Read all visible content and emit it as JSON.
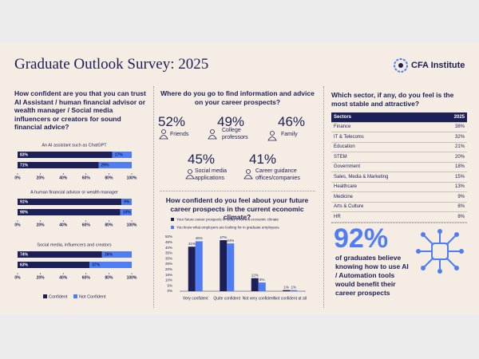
{
  "header": {
    "title": "Graduate Outlook Survey: 2025",
    "logo": "CFA Institute"
  },
  "trust": {
    "question": "How confident are you that you can trust AI Assistant / human financial advisor or wealth  manager / Social media influencers or creators for sound financial advice?"
  },
  "chart_data": [
    {
      "type": "bar",
      "orientation": "horizontal",
      "stacked": true,
      "subtitle": "An AI assistant such as ChatGPT",
      "categories": [
        null,
        null
      ],
      "series": [
        {
          "color": "#1c2057",
          "values": [
            83,
            71
          ],
          "value_labels": [
            "83%",
            "71%"
          ]
        },
        {
          "color": "#4f7df3",
          "values": [
            17,
            29
          ],
          "value_labels": [
            "17%",
            "29%"
          ]
        }
      ],
      "xlim": [
        0,
        100
      ],
      "xticks": [
        {
          "value": 0,
          "label": "0%"
        },
        {
          "value": 20,
          "label": "20%"
        },
        {
          "value": 40,
          "label": "40%"
        },
        {
          "value": 60,
          "label": "60%"
        },
        {
          "value": 80,
          "label": "80%"
        },
        {
          "value": 100,
          "label": "100%"
        }
      ]
    },
    {
      "type": "bar",
      "orientation": "horizontal",
      "stacked": true,
      "subtitle": "A human financial advisor or wealth manager",
      "categories": [
        null,
        null
      ],
      "series": [
        {
          "color": "#1c2057",
          "values": [
            91,
            90
          ],
          "value_labels": [
            "91%",
            "90%"
          ]
        },
        {
          "color": "#4f7df3",
          "values": [
            9,
            10
          ],
          "value_labels": [
            "9%",
            "10%"
          ]
        }
      ],
      "xlim": [
        0,
        100
      ],
      "xticks": [
        {
          "value": 0,
          "label": "0%"
        },
        {
          "value": 20,
          "label": "20%"
        },
        {
          "value": 40,
          "label": "40%"
        },
        {
          "value": 60,
          "label": "60%"
        },
        {
          "value": 80,
          "label": "80%"
        },
        {
          "value": 100,
          "label": "100%"
        }
      ]
    },
    {
      "type": "bar",
      "orientation": "horizontal",
      "stacked": true,
      "subtitle": "Social media, influencers and creators",
      "categories": [
        null,
        null
      ],
      "series": [
        {
          "name": "Confident",
          "color": "#1c2057",
          "values": [
            74,
            63
          ],
          "value_labels": [
            "74%",
            "63%"
          ]
        },
        {
          "name": "Not Confident",
          "color": "#4f7df3",
          "values": [
            26,
            37
          ],
          "value_labels": [
            "26%",
            "37%"
          ]
        }
      ],
      "xlim": [
        0,
        100
      ],
      "xticks": [
        {
          "value": 0,
          "label": "0%"
        },
        {
          "value": 20,
          "label": "20%"
        },
        {
          "value": 40,
          "label": "40%"
        },
        {
          "value": 60,
          "label": "60%"
        },
        {
          "value": 80,
          "label": "80%"
        },
        {
          "value": 100,
          "label": "100%"
        }
      ],
      "legend": "bottom"
    },
    {
      "type": "bar",
      "orientation": "vertical",
      "title": "How confident do you feel about your future career prospects in the current economic climate?",
      "categories": [
        "Very confident",
        "Quite confident",
        "Not very confident",
        "Not confident at all"
      ],
      "series": [
        {
          "name": "Your future career prospects in today's current economic climate",
          "color": "#1c2057",
          "values": [
            41,
            47,
            12,
            1
          ],
          "value_labels": [
            "41%",
            "47%",
            "12%",
            "1%"
          ]
        },
        {
          "name": "You know what employers are looking for in graduate employees",
          "color": "#4f7df3",
          "values": [
            46,
            44,
            8,
            1
          ],
          "value_labels": [
            "46%",
            "44%",
            "8%",
            "1%"
          ]
        }
      ],
      "ylim": [
        0,
        50
      ],
      "yticks": [
        {
          "value": 0,
          "label": "0%"
        },
        {
          "value": 5,
          "label": "5%"
        },
        {
          "value": 10,
          "label": "10%"
        },
        {
          "value": 15,
          "label": "15%"
        },
        {
          "value": 20,
          "label": "20%"
        },
        {
          "value": 25,
          "label": "25%"
        },
        {
          "value": 30,
          "label": "30%"
        },
        {
          "value": 35,
          "label": "35%"
        },
        {
          "value": 40,
          "label": "40%"
        },
        {
          "value": 45,
          "label": "45%"
        },
        {
          "value": 50,
          "label": "50%"
        }
      ],
      "grid": false,
      "legend": "top"
    }
  ],
  "sources": {
    "question": "Where do you go to find information and advice on your career prospects?",
    "items": [
      {
        "value": "52%",
        "label": "Friends"
      },
      {
        "value": "49%",
        "label": "College professors"
      },
      {
        "value": "46%",
        "label": "Family"
      },
      {
        "value": "45%",
        "label": "Social media applications"
      },
      {
        "value": "41%",
        "label": "Career guidance offices/companies"
      }
    ]
  },
  "sectors": {
    "question": "Which sector, if any, do you feel is the most stable and attractive?",
    "table": {
      "header": [
        "Sectors",
        "2025"
      ],
      "rows": [
        [
          "Finance",
          "38%"
        ],
        [
          "IT & Telecoms",
          "32%"
        ],
        [
          "Education",
          "21%"
        ],
        [
          "STEM",
          "20%"
        ],
        [
          "Government",
          "18%"
        ],
        [
          "Sales, Media & Marketing",
          "15%"
        ],
        [
          "Healthcare",
          "13%"
        ],
        [
          "Medicine",
          "9%"
        ],
        [
          "Arts & Culture",
          "8%"
        ],
        [
          "HR",
          "8%"
        ]
      ]
    }
  },
  "callout": {
    "value": "92%",
    "text": "of graduates believe knowing how to use AI / Automation tools would benefit their career prospects"
  }
}
